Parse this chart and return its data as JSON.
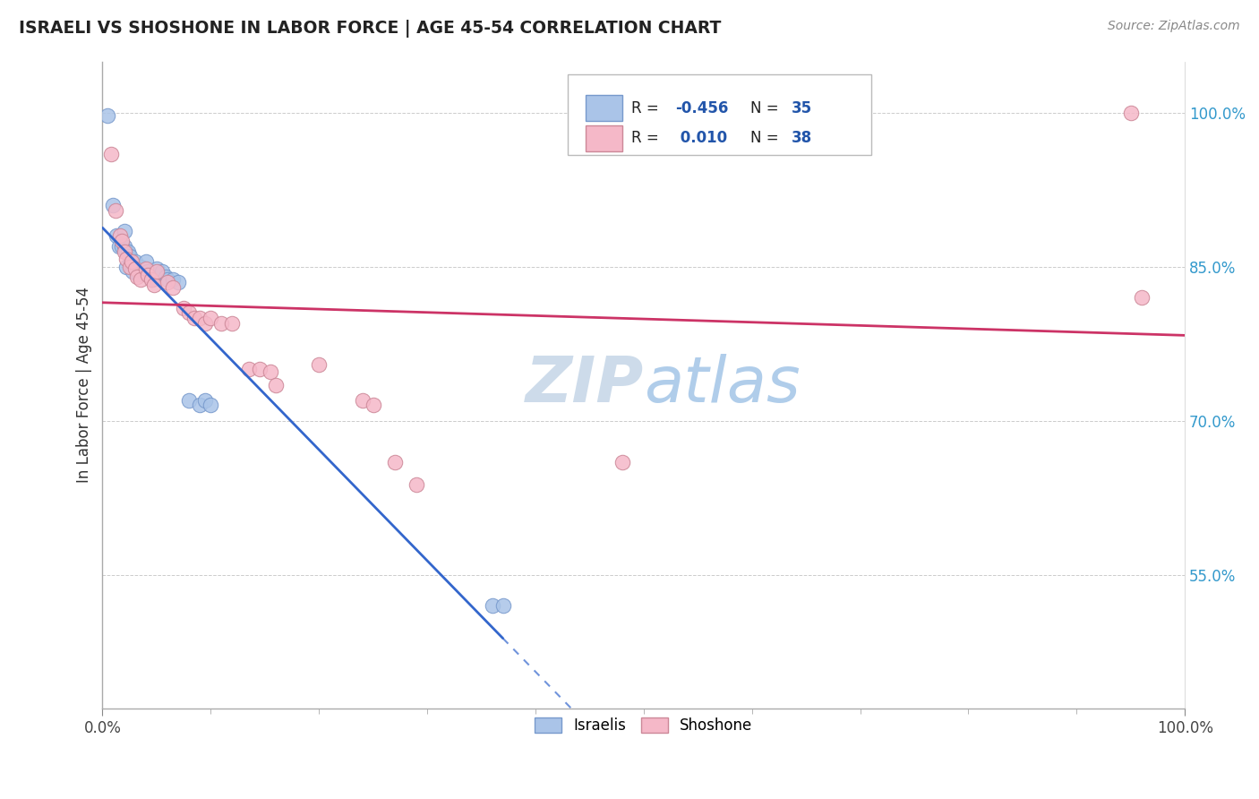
{
  "title": "ISRAELI VS SHOSHONE IN LABOR FORCE | AGE 45-54 CORRELATION CHART",
  "source_text": "Source: ZipAtlas.com",
  "ylabel": "In Labor Force | Age 45-54",
  "xlim": [
    0.0,
    1.0
  ],
  "ylim": [
    0.42,
    1.05
  ],
  "xtick_positions": [
    0.0,
    1.0
  ],
  "xtick_labels": [
    "0.0%",
    "100.0%"
  ],
  "ytick_values": [
    0.55,
    0.7,
    0.85,
    1.0
  ],
  "ytick_labels": [
    "55.0%",
    "70.0%",
    "85.0%",
    "100.0%"
  ],
  "israeli_x": [
    0.005,
    0.01,
    0.013,
    0.015,
    0.018,
    0.02,
    0.02,
    0.022,
    0.022,
    0.024,
    0.025,
    0.026,
    0.027,
    0.028,
    0.03,
    0.032,
    0.033,
    0.035,
    0.037,
    0.04,
    0.042,
    0.044,
    0.046,
    0.05,
    0.055,
    0.058,
    0.06,
    0.065,
    0.07,
    0.08,
    0.09,
    0.095,
    0.1,
    0.36,
    0.37
  ],
  "israeli_y": [
    0.997,
    0.91,
    0.88,
    0.87,
    0.87,
    0.885,
    0.87,
    0.865,
    0.85,
    0.865,
    0.86,
    0.855,
    0.85,
    0.845,
    0.855,
    0.848,
    0.843,
    0.85,
    0.845,
    0.855,
    0.845,
    0.84,
    0.838,
    0.848,
    0.845,
    0.84,
    0.838,
    0.838,
    0.835,
    0.72,
    0.715,
    0.72,
    0.715,
    0.52,
    0.52
  ],
  "shoshone_x": [
    0.008,
    0.012,
    0.016,
    0.018,
    0.02,
    0.022,
    0.025,
    0.027,
    0.03,
    0.032,
    0.035,
    0.04,
    0.042,
    0.045,
    0.048,
    0.05,
    0.06,
    0.065,
    0.075,
    0.08,
    0.085,
    0.09,
    0.095,
    0.1,
    0.11,
    0.12,
    0.135,
    0.145,
    0.155,
    0.16,
    0.2,
    0.24,
    0.25,
    0.27,
    0.29,
    0.48,
    0.95,
    0.96
  ],
  "shoshone_y": [
    0.96,
    0.905,
    0.88,
    0.875,
    0.865,
    0.858,
    0.85,
    0.855,
    0.848,
    0.84,
    0.838,
    0.848,
    0.842,
    0.838,
    0.832,
    0.845,
    0.835,
    0.83,
    0.81,
    0.805,
    0.8,
    0.8,
    0.795,
    0.8,
    0.795,
    0.795,
    0.75,
    0.75,
    0.748,
    0.735,
    0.755,
    0.72,
    0.715,
    0.66,
    0.638,
    0.66,
    1.0,
    0.82
  ],
  "israeli_line_color": "#3366cc",
  "shoshone_line_color": "#cc3366",
  "israeli_dot_facecolor": "#aac4e8",
  "israeli_dot_edgecolor": "#7799cc",
  "shoshone_dot_facecolor": "#f5b8c8",
  "shoshone_dot_edgecolor": "#cc8898",
  "background_color": "#ffffff",
  "grid_color": "#cccccc",
  "title_color": "#222222",
  "ylabel_color": "#333333",
  "ytick_color": "#3399cc",
  "watermark_color": "#cce0f0",
  "r_n_color": "#2255aa",
  "legend_box_color": "#aaaaaa"
}
